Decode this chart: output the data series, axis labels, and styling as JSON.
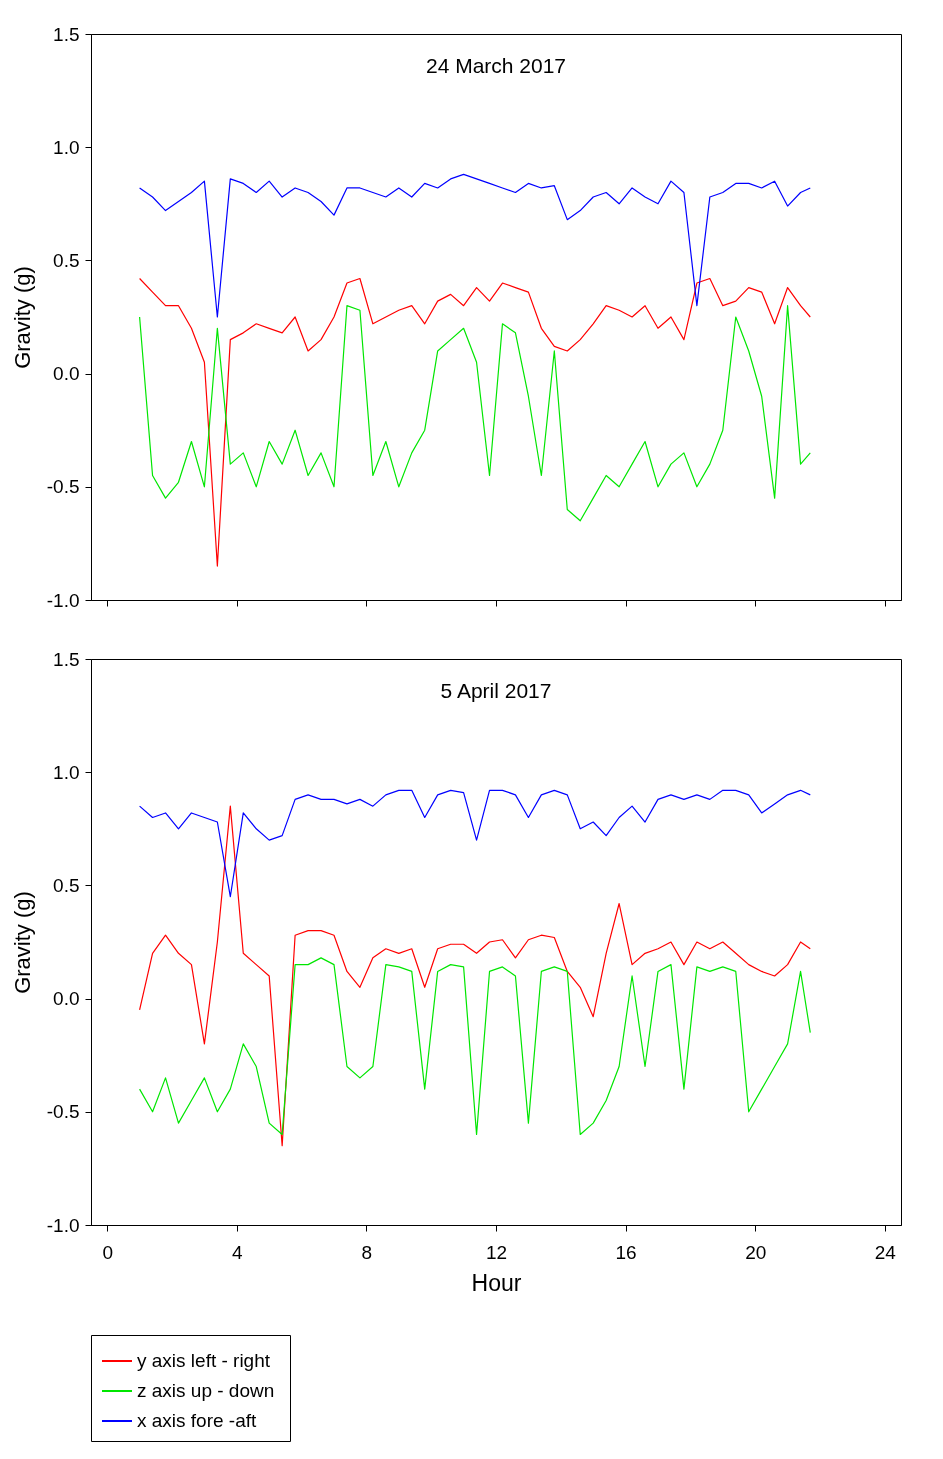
{
  "chart_data": [
    {
      "type": "line",
      "title": "24 March 2017",
      "ylabel": "Gravity (g)",
      "tick_labels": "y",
      "legend": false,
      "grid": false,
      "xlim": [
        -0.5,
        24.5
      ],
      "xticks": [
        0,
        4,
        8,
        12,
        16,
        20,
        24
      ],
      "ylim": [
        -1.0,
        1.5
      ],
      "yticks": [
        {
          "value": -1.0,
          "label": "-1.0"
        },
        {
          "value": -0.5,
          "label": "-0.5"
        },
        {
          "value": 0,
          "label": "0.0"
        },
        {
          "value": 0.5,
          "label": "0.5"
        },
        {
          "value": 1.0,
          "label": "1.0"
        },
        {
          "value": 1.5,
          "label": "1.5"
        }
      ],
      "x": [
        1.0,
        1.4,
        1.8,
        2.2,
        2.6,
        3.0,
        3.4,
        3.8,
        4.2,
        4.6,
        5.0,
        5.4,
        5.8,
        6.2,
        6.6,
        7.0,
        7.4,
        7.8,
        8.2,
        8.6,
        9.0,
        9.4,
        9.8,
        10.2,
        10.6,
        11.0,
        11.4,
        11.8,
        12.2,
        12.6,
        13.0,
        13.4,
        13.8,
        14.2,
        14.6,
        15.0,
        15.4,
        15.8,
        16.2,
        16.6,
        17.0,
        17.4,
        17.8,
        18.2,
        18.6,
        19.0,
        19.4,
        19.8,
        20.2,
        20.6,
        21.0,
        21.4,
        21.7
      ],
      "series": [
        {
          "color": "#ff0000",
          "values": [
            0.42,
            0.36,
            0.3,
            0.3,
            0.2,
            0.05,
            -0.85,
            0.15,
            0.18,
            0.22,
            0.2,
            0.18,
            0.25,
            0.1,
            0.15,
            0.25,
            0.4,
            0.42,
            0.22,
            0.25,
            0.28,
            0.3,
            0.22,
            0.32,
            0.35,
            0.3,
            0.38,
            0.32,
            0.4,
            0.38,
            0.36,
            0.2,
            0.12,
            0.1,
            0.15,
            0.22,
            0.3,
            0.28,
            0.25,
            0.3,
            0.2,
            0.25,
            0.15,
            0.4,
            0.42,
            0.3,
            0.32,
            0.38,
            0.36,
            0.22,
            0.38,
            0.3,
            0.25
          ]
        },
        {
          "color": "#00e600",
          "values": [
            0.25,
            -0.45,
            -0.55,
            -0.48,
            -0.3,
            -0.5,
            0.2,
            -0.4,
            -0.35,
            -0.5,
            -0.3,
            -0.4,
            -0.25,
            -0.45,
            -0.35,
            -0.5,
            0.3,
            0.28,
            -0.45,
            -0.3,
            -0.5,
            -0.35,
            -0.25,
            0.1,
            0.15,
            0.2,
            0.05,
            -0.45,
            0.22,
            0.18,
            -0.1,
            -0.45,
            0.1,
            -0.6,
            -0.65,
            -0.55,
            -0.45,
            -0.5,
            -0.4,
            -0.3,
            -0.5,
            -0.4,
            -0.35,
            -0.5,
            -0.4,
            -0.25,
            0.25,
            0.1,
            -0.1,
            -0.55,
            0.3,
            -0.4,
            -0.35
          ]
        },
        {
          "color": "#0000ff",
          "values": [
            0.82,
            0.78,
            0.72,
            0.76,
            0.8,
            0.85,
            0.25,
            0.86,
            0.84,
            0.8,
            0.85,
            0.78,
            0.82,
            0.8,
            0.76,
            0.7,
            0.82,
            0.82,
            0.8,
            0.78,
            0.82,
            0.78,
            0.84,
            0.82,
            0.86,
            0.88,
            0.86,
            0.84,
            0.82,
            0.8,
            0.84,
            0.82,
            0.83,
            0.68,
            0.72,
            0.78,
            0.8,
            0.75,
            0.82,
            0.78,
            0.75,
            0.85,
            0.8,
            0.3,
            0.78,
            0.8,
            0.84,
            0.84,
            0.82,
            0.85,
            0.74,
            0.8,
            0.82
          ]
        }
      ]
    },
    {
      "type": "line",
      "title": "5 April 2017",
      "xlabel": "Hour",
      "ylabel": "Gravity (g)",
      "legend": "bottom",
      "grid": false,
      "xlim": [
        -0.5,
        24.5
      ],
      "xticks": [
        0,
        4,
        8,
        12,
        16,
        20,
        24
      ],
      "ylim": [
        -1.0,
        1.5
      ],
      "yticks": [
        {
          "value": -1.0,
          "label": "-1.0"
        },
        {
          "value": -0.5,
          "label": "-0.5"
        },
        {
          "value": 0,
          "label": "0.0"
        },
        {
          "value": 0.5,
          "label": "0.5"
        },
        {
          "value": 1.0,
          "label": "1.0"
        },
        {
          "value": 1.5,
          "label": "1.5"
        }
      ],
      "x": [
        1.0,
        1.4,
        1.8,
        2.2,
        2.6,
        3.0,
        3.4,
        3.8,
        4.2,
        4.6,
        5.0,
        5.4,
        5.8,
        6.2,
        6.6,
        7.0,
        7.4,
        7.8,
        8.2,
        8.6,
        9.0,
        9.4,
        9.8,
        10.2,
        10.6,
        11.0,
        11.4,
        11.8,
        12.2,
        12.6,
        13.0,
        13.4,
        13.8,
        14.2,
        14.6,
        15.0,
        15.4,
        15.8,
        16.2,
        16.6,
        17.0,
        17.4,
        17.8,
        18.2,
        18.6,
        19.0,
        19.4,
        19.8,
        20.2,
        20.6,
        21.0,
        21.4,
        21.7
      ],
      "series": [
        {
          "name": "y axis left - right",
          "color": "#ff0000",
          "values": [
            -0.05,
            0.2,
            0.28,
            0.2,
            0.15,
            -0.2,
            0.25,
            0.85,
            0.2,
            0.15,
            0.1,
            -0.65,
            0.28,
            0.3,
            0.3,
            0.28,
            0.12,
            0.05,
            0.18,
            0.22,
            0.2,
            0.22,
            0.05,
            0.22,
            0.24,
            0.24,
            0.2,
            0.25,
            0.26,
            0.18,
            0.26,
            0.28,
            0.27,
            0.12,
            0.05,
            -0.08,
            0.2,
            0.42,
            0.15,
            0.2,
            0.22,
            0.25,
            0.15,
            0.25,
            0.22,
            0.25,
            0.2,
            0.15,
            0.12,
            0.1,
            0.15,
            0.25,
            0.22
          ]
        },
        {
          "name": "z axis  up - down",
          "color": "#00e600",
          "values": [
            -0.4,
            -0.5,
            -0.35,
            -0.55,
            -0.45,
            -0.35,
            -0.5,
            -0.4,
            -0.2,
            -0.3,
            -0.55,
            -0.6,
            0.15,
            0.15,
            0.18,
            0.15,
            -0.3,
            -0.35,
            -0.3,
            0.15,
            0.14,
            0.12,
            -0.4,
            0.12,
            0.15,
            0.14,
            -0.6,
            0.12,
            0.14,
            0.1,
            -0.55,
            0.12,
            0.14,
            0.12,
            -0.6,
            -0.55,
            -0.45,
            -0.3,
            0.1,
            -0.3,
            0.12,
            0.15,
            -0.4,
            0.14,
            0.12,
            0.14,
            0.12,
            -0.5,
            -0.4,
            -0.3,
            -0.2,
            0.12,
            -0.15
          ]
        },
        {
          "name": "x axis  fore -aft",
          "color": "#0000ff",
          "values": [
            0.85,
            0.8,
            0.82,
            0.75,
            0.82,
            0.8,
            0.78,
            0.45,
            0.82,
            0.75,
            0.7,
            0.72,
            0.88,
            0.9,
            0.88,
            0.88,
            0.86,
            0.88,
            0.85,
            0.9,
            0.92,
            0.92,
            0.8,
            0.9,
            0.92,
            0.91,
            0.7,
            0.92,
            0.92,
            0.9,
            0.8,
            0.9,
            0.92,
            0.9,
            0.75,
            0.78,
            0.72,
            0.8,
            0.85,
            0.78,
            0.88,
            0.9,
            0.88,
            0.9,
            0.88,
            0.92,
            0.92,
            0.9,
            0.82,
            0.86,
            0.9,
            0.92,
            0.9
          ]
        }
      ]
    }
  ]
}
